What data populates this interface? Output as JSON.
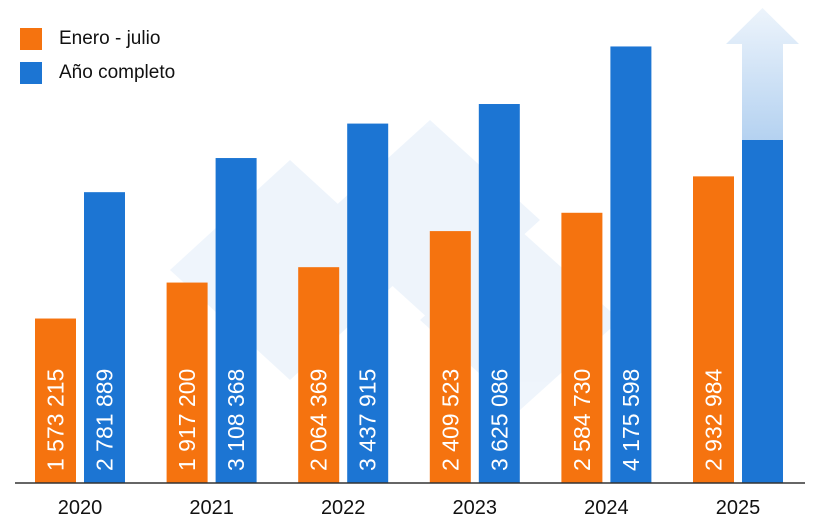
{
  "chart_data": {
    "type": "bar",
    "title": "",
    "xlabel": "",
    "ylabel": "",
    "categories": [
      "2020",
      "2021",
      "2022",
      "2023",
      "2024",
      "2025"
    ],
    "series": [
      {
        "name": "Enero - julio",
        "color": "#F5730F",
        "values": [
          1573215,
          1917200,
          2064369,
          2409523,
          2584730,
          2932984
        ],
        "labels": [
          "1 573 215",
          "1 917 200",
          "2 064 369",
          "2 409 523",
          "2 584 730",
          "2 932 984"
        ]
      },
      {
        "name": "Año completo",
        "color": "#1C75D3",
        "values": [
          2781889,
          3108368,
          3437915,
          3625086,
          4175598,
          null
        ],
        "labels": [
          "2 781 889",
          "3 108 368",
          "3 437 915",
          "3 625 086",
          "4 175 598",
          ""
        ]
      }
    ],
    "annotations": [
      {
        "type": "upward-arrow",
        "category": "2025",
        "series": "Año completo",
        "meaning": "projected increase"
      }
    ],
    "ylim": [
      0,
      4620000
    ],
    "grid": false,
    "y_axis_visible": false,
    "legend_position": "top-left",
    "data_labels": "rotated vertical, inside bars"
  }
}
